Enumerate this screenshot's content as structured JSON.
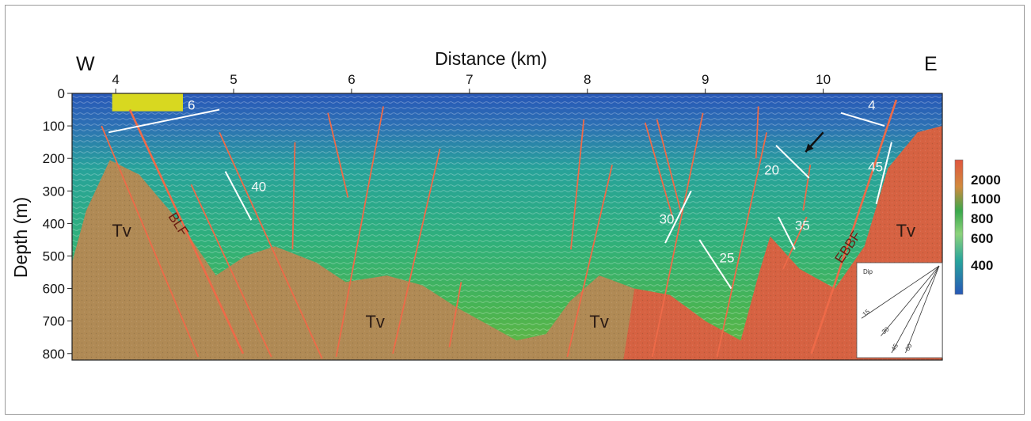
{
  "chart_data": {
    "type": "heatmap",
    "title": "",
    "xlabel": "Distance (km)",
    "ylabel": "Depth (m)",
    "xlim": [
      3.63,
      11.01
    ],
    "ylim": [
      0,
      820
    ],
    "x_ticks": [
      4,
      5,
      6,
      7,
      8,
      9,
      10
    ],
    "y_ticks": [
      0,
      100,
      200,
      300,
      400,
      500,
      600,
      700,
      800
    ],
    "compass": {
      "west": "W",
      "east": "E"
    },
    "colorbar": {
      "labels": [
        "2000",
        "1000",
        "800",
        "600",
        "400"
      ],
      "colors": [
        "#e0563e",
        "#3aa84c",
        "#8dd27b",
        "#28a49c",
        "#2757b7"
      ]
    },
    "basement": {
      "label": "Tv",
      "profile": [
        {
          "x": 3.63,
          "y": 520
        },
        {
          "x": 3.75,
          "y": 360
        },
        {
          "x": 3.95,
          "y": 205
        },
        {
          "x": 4.2,
          "y": 250
        },
        {
          "x": 4.55,
          "y": 400
        },
        {
          "x": 4.85,
          "y": 560
        },
        {
          "x": 5.1,
          "y": 500
        },
        {
          "x": 5.35,
          "y": 470
        },
        {
          "x": 5.7,
          "y": 520
        },
        {
          "x": 5.95,
          "y": 580
        },
        {
          "x": 6.3,
          "y": 560
        },
        {
          "x": 6.6,
          "y": 590
        },
        {
          "x": 6.9,
          "y": 660
        },
        {
          "x": 7.15,
          "y": 710
        },
        {
          "x": 7.4,
          "y": 760
        },
        {
          "x": 7.65,
          "y": 740
        },
        {
          "x": 7.85,
          "y": 640
        },
        {
          "x": 8.1,
          "y": 560
        },
        {
          "x": 8.4,
          "y": 600
        },
        {
          "x": 8.7,
          "y": 620
        },
        {
          "x": 9.0,
          "y": 700
        },
        {
          "x": 9.3,
          "y": 760
        },
        {
          "x": 9.45,
          "y": 560
        },
        {
          "x": 9.55,
          "y": 440
        },
        {
          "x": 9.8,
          "y": 540
        },
        {
          "x": 10.1,
          "y": 600
        },
        {
          "x": 10.35,
          "y": 470
        },
        {
          "x": 10.55,
          "y": 230
        },
        {
          "x": 10.8,
          "y": 120
        },
        {
          "x": 11.01,
          "y": 100
        }
      ]
    },
    "unit_labels": [
      {
        "text": "Tv",
        "x": 4.05,
        "y": 440
      },
      {
        "text": "Tv",
        "x": 6.2,
        "y": 720
      },
      {
        "text": "Tv",
        "x": 8.1,
        "y": 720
      },
      {
        "text": "Tv",
        "x": 10.7,
        "y": 440
      }
    ],
    "faults": [
      {
        "x1": 3.88,
        "y1": 100,
        "x2": 4.7,
        "y2": 810
      },
      {
        "x1": 4.12,
        "y1": 50,
        "x2": 5.08,
        "y2": 800
      },
      {
        "x1": 4.64,
        "y1": 280,
        "x2": 5.32,
        "y2": 810
      },
      {
        "x1": 4.88,
        "y1": 120,
        "x2": 5.75,
        "y2": 815
      },
      {
        "x1": 5.52,
        "y1": 150,
        "x2": 5.5,
        "y2": 480
      },
      {
        "x1": 5.8,
        "y1": 60,
        "x2": 5.97,
        "y2": 320
      },
      {
        "x1": 6.27,
        "y1": 40,
        "x2": 5.87,
        "y2": 810
      },
      {
        "x1": 6.75,
        "y1": 170,
        "x2": 6.35,
        "y2": 800
      },
      {
        "x1": 6.93,
        "y1": 580,
        "x2": 6.83,
        "y2": 780
      },
      {
        "x1": 7.97,
        "y1": 80,
        "x2": 7.86,
        "y2": 480
      },
      {
        "x1": 8.21,
        "y1": 220,
        "x2": 7.83,
        "y2": 810
      },
      {
        "x1": 8.49,
        "y1": 90,
        "x2": 8.73,
        "y2": 390
      },
      {
        "x1": 8.59,
        "y1": 80,
        "x2": 8.79,
        "y2": 360
      },
      {
        "x1": 8.98,
        "y1": 60,
        "x2": 8.55,
        "y2": 810
      },
      {
        "x1": 9.45,
        "y1": 40,
        "x2": 9.43,
        "y2": 200
      },
      {
        "x1": 9.52,
        "y1": 120,
        "x2": 9.1,
        "y2": 810
      },
      {
        "x1": 9.89,
        "y1": 220,
        "x2": 9.83,
        "y2": 360
      },
      {
        "x1": 9.86,
        "y1": 380,
        "x2": 9.66,
        "y2": 540
      },
      {
        "x1": 10.62,
        "y1": 20,
        "x2": 9.9,
        "y2": 800
      }
    ],
    "fault_labels": [
      {
        "text": "BLF",
        "x": 4.5,
        "y": 410,
        "angle": 57
      },
      {
        "text": "EBBF",
        "x": 10.24,
        "y": 480,
        "angle": -56
      }
    ],
    "dip_markers": [
      {
        "label": "6",
        "x1": 3.94,
        "y1": 120,
        "x2": 4.88,
        "y2": 50,
        "lx": 4.61,
        "ly": 50
      },
      {
        "label": "40",
        "x1": 4.93,
        "y1": 240,
        "x2": 5.15,
        "y2": 390,
        "lx": 5.15,
        "ly": 300
      },
      {
        "label": "30",
        "x1": 8.88,
        "y1": 300,
        "x2": 8.66,
        "y2": 460,
        "lx": 8.61,
        "ly": 400
      },
      {
        "label": "25",
        "x1": 8.95,
        "y1": 450,
        "x2": 9.22,
        "y2": 600,
        "lx": 9.12,
        "ly": 520
      },
      {
        "label": "20",
        "x1": 9.6,
        "y1": 160,
        "x2": 9.88,
        "y2": 260,
        "lx": 9.5,
        "ly": 250
      },
      {
        "label": "35",
        "x1": 9.62,
        "y1": 380,
        "x2": 9.76,
        "y2": 480,
        "lx": 9.76,
        "ly": 420
      },
      {
        "label": "45",
        "x1": 10.58,
        "y1": 150,
        "x2": 10.45,
        "y2": 340,
        "lx": 10.38,
        "ly": 240
      },
      {
        "label": "4",
        "x1": 10.15,
        "y1": 60,
        "x2": 10.52,
        "y2": 100,
        "lx": 10.38,
        "ly": 50
      }
    ],
    "marker_box": {
      "x1": 3.97,
      "x2": 4.57,
      "y1": 0,
      "y2": 55,
      "color": "#d8d820"
    },
    "arrow": {
      "from_x": 10.0,
      "from_y": 120,
      "to_x": 9.85,
      "to_y": 180
    },
    "inset": {
      "title": "Dip",
      "rays": [
        15,
        30,
        45,
        60
      ],
      "ray_labels": [
        "15",
        "30",
        "45",
        "60"
      ]
    }
  }
}
